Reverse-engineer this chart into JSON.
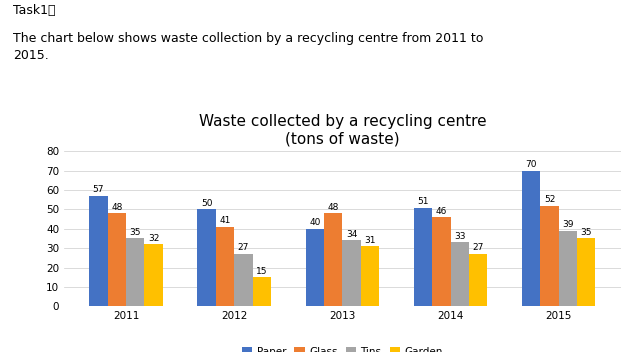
{
  "title": "Waste collected by a recycling centre\n(tons of waste)",
  "years": [
    "2011",
    "2012",
    "2013",
    "2014",
    "2015"
  ],
  "categories": [
    "Paper",
    "Glass",
    "Tins",
    "Garden"
  ],
  "values": {
    "Paper": [
      57,
      50,
      40,
      51,
      70
    ],
    "Glass": [
      48,
      41,
      48,
      46,
      52
    ],
    "Tins": [
      35,
      27,
      34,
      33,
      39
    ],
    "Garden": [
      32,
      15,
      31,
      27,
      35
    ]
  },
  "colors": {
    "Paper": "#4472C4",
    "Glass": "#ED7D31",
    "Tins": "#A5A5A5",
    "Garden": "#FFC000"
  },
  "ylim": [
    0,
    80
  ],
  "yticks": [
    0,
    10,
    20,
    30,
    40,
    50,
    60,
    70,
    80
  ],
  "bar_width": 0.17,
  "header_line1": "Task1：",
  "header_line2": "The chart below shows waste collection by a recycling centre from 2011 to\n2015.",
  "title_fontsize": 11,
  "label_fontsize": 7.5,
  "legend_fontsize": 7.5,
  "value_fontsize": 6.5,
  "background_color": "#FFFFFF"
}
